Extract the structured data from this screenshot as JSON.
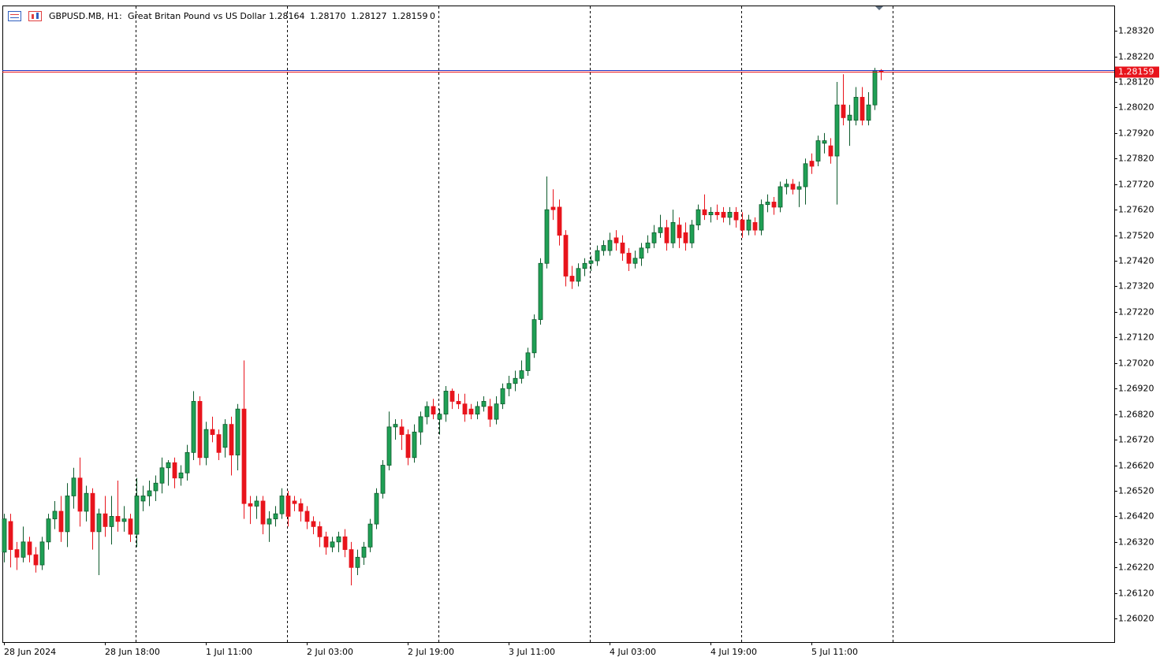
{
  "chart_data": {
    "type": "candlestick",
    "symbol": "GBPUSD.MB, H1:",
    "description": "Great Britan Pound vs US Dollar",
    "header_labels": [
      "1.28164",
      "1.28170",
      "1.28127",
      "1.28159"
    ],
    "tick_volume": 0,
    "up_color": "#1fa055",
    "down_color": "#e8141c",
    "price_line_color": "#e8141c",
    "grid": false,
    "ylim": [
      1.25928,
      1.28419
    ],
    "yticks": [
      {
        "value": 1.2832,
        "label": "1.28320"
      },
      {
        "value": 1.2822,
        "label": "1.28220"
      },
      {
        "value": 1.2812,
        "label": "1.28120"
      },
      {
        "value": 1.2802,
        "label": "1.28020"
      },
      {
        "value": 1.2792,
        "label": "1.27920"
      },
      {
        "value": 1.2782,
        "label": "1.27820"
      },
      {
        "value": 1.2772,
        "label": "1.27720"
      },
      {
        "value": 1.2762,
        "label": "1.27620"
      },
      {
        "value": 1.2752,
        "label": "1.27520"
      },
      {
        "value": 1.2742,
        "label": "1.27420"
      },
      {
        "value": 1.2732,
        "label": "1.27320"
      },
      {
        "value": 1.2722,
        "label": "1.27220"
      },
      {
        "value": 1.2712,
        "label": "1.27120"
      },
      {
        "value": 1.2702,
        "label": "1.27020"
      },
      {
        "value": 1.2692,
        "label": "1.26920"
      },
      {
        "value": 1.2682,
        "label": "1.26820"
      },
      {
        "value": 1.2672,
        "label": "1.26720"
      },
      {
        "value": 1.2662,
        "label": "1.26620"
      },
      {
        "value": 1.2652,
        "label": "1.26520"
      },
      {
        "value": 1.2642,
        "label": "1.26420"
      },
      {
        "value": 1.2632,
        "label": "1.26320"
      },
      {
        "value": 1.2622,
        "label": "1.26220"
      },
      {
        "value": 1.2612,
        "label": "1.26120"
      },
      {
        "value": 1.2602,
        "label": "1.26020"
      }
    ],
    "categories": [
      "28 Jun 2024",
      null,
      null,
      null,
      null,
      null,
      null,
      null,
      null,
      null,
      null,
      null,
      null,
      null,
      null,
      null,
      "28 Jun 18:00",
      null,
      null,
      null,
      null,
      null,
      null,
      null,
      null,
      null,
      null,
      null,
      null,
      null,
      null,
      null,
      "1 Jul 11:00",
      null,
      null,
      null,
      null,
      null,
      null,
      null,
      null,
      null,
      null,
      null,
      null,
      null,
      null,
      null,
      "2 Jul 03:00",
      null,
      null,
      null,
      null,
      null,
      null,
      null,
      null,
      null,
      null,
      null,
      null,
      null,
      null,
      null,
      "2 Jul 19:00",
      null,
      null,
      null,
      null,
      null,
      null,
      null,
      null,
      null,
      null,
      null,
      null,
      null,
      null,
      null,
      "3 Jul 11:00",
      null,
      null,
      null,
      null,
      null,
      null,
      null,
      null,
      null,
      null,
      null,
      null,
      null,
      null,
      null,
      "4 Jul 03:00",
      null,
      null,
      null,
      null,
      null,
      null,
      null,
      null,
      null,
      null,
      null,
      null,
      null,
      null,
      null,
      "4 Jul 19:00",
      null,
      null,
      null,
      null,
      null,
      null,
      null,
      null,
      null,
      null,
      null,
      null,
      null,
      null,
      null,
      "5 Jul 11:00",
      null,
      null,
      null,
      null,
      null,
      null,
      null,
      null,
      null,
      null,
      null
    ],
    "ohlc": [
      [
        1.2628,
        1.2643,
        1.2624,
        1.2641
      ],
      [
        1.264,
        1.2643,
        1.2622,
        1.2629
      ],
      [
        1.2629,
        1.2632,
        1.2621,
        1.2626
      ],
      [
        1.2626,
        1.2638,
        1.2624,
        1.2632
      ],
      [
        1.2632,
        1.2634,
        1.2624,
        1.2627
      ],
      [
        1.2627,
        1.263,
        1.262,
        1.2623
      ],
      [
        1.2623,
        1.2634,
        1.2621,
        1.2632
      ],
      [
        1.2632,
        1.2643,
        1.2629,
        1.2641
      ],
      [
        1.2641,
        1.2648,
        1.2637,
        1.2644
      ],
      [
        1.2644,
        1.265,
        1.2632,
        1.2636
      ],
      [
        1.2636,
        1.2655,
        1.263,
        1.265
      ],
      [
        1.265,
        1.2661,
        1.2645,
        1.2657
      ],
      [
        1.2657,
        1.2665,
        1.2638,
        1.2644
      ],
      [
        1.2644,
        1.2654,
        1.264,
        1.2651
      ],
      [
        1.2651,
        1.2653,
        1.2629,
        1.2636
      ],
      [
        1.2636,
        1.2645,
        1.2619,
        1.2643
      ],
      [
        1.2643,
        1.265,
        1.2634,
        1.2638
      ],
      [
        1.2638,
        1.265,
        1.2631,
        1.2642
      ],
      [
        1.2642,
        1.2656,
        1.2636,
        1.264
      ],
      [
        1.264,
        1.2646,
        1.2636,
        1.2641
      ],
      [
        1.2641,
        1.2643,
        1.2632,
        1.2635
      ],
      [
        1.2635,
        1.2657,
        1.263,
        1.265
      ],
      [
        1.2648,
        1.2654,
        1.2644,
        1.265
      ],
      [
        1.265,
        1.2656,
        1.2646,
        1.2652
      ],
      [
        1.2652,
        1.2658,
        1.2648,
        1.2655
      ],
      [
        1.2655,
        1.2665,
        1.2651,
        1.2661
      ],
      [
        1.2661,
        1.2664,
        1.2654,
        1.2663
      ],
      [
        1.2663,
        1.2665,
        1.2653,
        1.2657
      ],
      [
        1.2657,
        1.2662,
        1.2654,
        1.2659
      ],
      [
        1.2659,
        1.267,
        1.2656,
        1.2667
      ],
      [
        1.2667,
        1.2691,
        1.2664,
        1.2687
      ],
      [
        1.2687,
        1.2689,
        1.2662,
        1.2665
      ],
      [
        1.2665,
        1.2679,
        1.2662,
        1.2676
      ],
      [
        1.2676,
        1.2681,
        1.2671,
        1.2674
      ],
      [
        1.2674,
        1.2676,
        1.2664,
        1.2667
      ],
      [
        1.2669,
        1.268,
        1.2665,
        1.2678
      ],
      [
        1.2678,
        1.2681,
        1.2658,
        1.2666
      ],
      [
        1.2666,
        1.2686,
        1.266,
        1.2684
      ],
      [
        1.2684,
        1.2703,
        1.2641,
        1.2647
      ],
      [
        1.2647,
        1.265,
        1.2639,
        1.2646
      ],
      [
        1.2646,
        1.265,
        1.2641,
        1.2648
      ],
      [
        1.2648,
        1.265,
        1.2635,
        1.2639
      ],
      [
        1.2639,
        1.2644,
        1.2632,
        1.2641
      ],
      [
        1.2641,
        1.2646,
        1.2638,
        1.2643
      ],
      [
        1.2643,
        1.2653,
        1.2641,
        1.265
      ],
      [
        1.265,
        1.2652,
        1.2638,
        1.2642
      ],
      [
        1.2648,
        1.265,
        1.2644,
        1.2647
      ],
      [
        1.2647,
        1.2649,
        1.264,
        1.2644
      ],
      [
        1.2644,
        1.2646,
        1.2637,
        1.264
      ],
      [
        1.264,
        1.2642,
        1.2635,
        1.2638
      ],
      [
        1.2638,
        1.264,
        1.263,
        1.2634
      ],
      [
        1.2634,
        1.2636,
        1.2627,
        1.263
      ],
      [
        1.263,
        1.2634,
        1.2628,
        1.2632
      ],
      [
        1.2632,
        1.2636,
        1.2628,
        1.2634
      ],
      [
        1.2634,
        1.2637,
        1.2626,
        1.2629
      ],
      [
        1.2629,
        1.2632,
        1.2615,
        1.2622
      ],
      [
        1.2622,
        1.2629,
        1.2619,
        1.2626
      ],
      [
        1.2626,
        1.2632,
        1.2623,
        1.263
      ],
      [
        1.263,
        1.2641,
        1.2628,
        1.2639
      ],
      [
        1.2639,
        1.2653,
        1.2637,
        1.2651
      ],
      [
        1.2651,
        1.2664,
        1.2649,
        1.2662
      ],
      [
        1.2662,
        1.2683,
        1.266,
        1.2677
      ],
      [
        1.2677,
        1.268,
        1.2672,
        1.2678
      ],
      [
        1.2677,
        1.268,
        1.2668,
        1.2674
      ],
      [
        1.2674,
        1.2676,
        1.2662,
        1.2665
      ],
      [
        1.2665,
        1.2678,
        1.2663,
        1.2675
      ],
      [
        1.2675,
        1.2683,
        1.267,
        1.2681
      ],
      [
        1.2681,
        1.2687,
        1.2678,
        1.2685
      ],
      [
        1.2685,
        1.2688,
        1.268,
        1.2682
      ],
      [
        1.268,
        1.2684,
        1.2674,
        1.2682
      ],
      [
        1.2682,
        1.2693,
        1.2679,
        1.2691
      ],
      [
        1.2691,
        1.2692,
        1.2684,
        1.2687
      ],
      [
        1.2687,
        1.269,
        1.2684,
        1.2686
      ],
      [
        1.2686,
        1.269,
        1.2679,
        1.2682
      ],
      [
        1.2684,
        1.2686,
        1.268,
        1.2682
      ],
      [
        1.2682,
        1.2687,
        1.268,
        1.2685
      ],
      [
        1.2685,
        1.2689,
        1.2683,
        1.2687
      ],
      [
        1.2685,
        1.2688,
        1.2677,
        1.268
      ],
      [
        1.268,
        1.2689,
        1.2678,
        1.2686
      ],
      [
        1.2686,
        1.2694,
        1.2684,
        1.2692
      ],
      [
        1.2692,
        1.2697,
        1.2689,
        1.2694
      ],
      [
        1.2694,
        1.2699,
        1.2691,
        1.2696
      ],
      [
        1.2696,
        1.2703,
        1.2694,
        1.2699
      ],
      [
        1.2699,
        1.2708,
        1.2697,
        1.2706
      ],
      [
        1.2706,
        1.2721,
        1.2704,
        1.2719
      ],
      [
        1.2719,
        1.2743,
        1.2717,
        1.2741
      ],
      [
        1.2741,
        1.2775,
        1.2739,
        1.2762
      ],
      [
        1.2763,
        1.277,
        1.2758,
        1.2762
      ],
      [
        1.2763,
        1.2766,
        1.2748,
        1.2752
      ],
      [
        1.2752,
        1.2754,
        1.2732,
        1.2736
      ],
      [
        1.2736,
        1.274,
        1.2731,
        1.2734
      ],
      [
        1.2734,
        1.2741,
        1.2732,
        1.2739
      ],
      [
        1.2739,
        1.2743,
        1.2736,
        1.2741
      ],
      [
        1.2741,
        1.2744,
        1.2738,
        1.2742
      ],
      [
        1.2742,
        1.2748,
        1.274,
        1.2746
      ],
      [
        1.2746,
        1.275,
        1.2744,
        1.2748
      ],
      [
        1.2746,
        1.2753,
        1.2744,
        1.275
      ],
      [
        1.2751,
        1.2754,
        1.2746,
        1.2749
      ],
      [
        1.2749,
        1.2752,
        1.2742,
        1.2745
      ],
      [
        1.2745,
        1.2747,
        1.2738,
        1.2741
      ],
      [
        1.2741,
        1.2746,
        1.2739,
        1.2743
      ],
      [
        1.2743,
        1.2749,
        1.274,
        1.2747
      ],
      [
        1.2747,
        1.2752,
        1.2745,
        1.2749
      ],
      [
        1.2749,
        1.2756,
        1.2747,
        1.2753
      ],
      [
        1.2753,
        1.276,
        1.2751,
        1.2755
      ],
      [
        1.2755,
        1.2758,
        1.2746,
        1.2749
      ],
      [
        1.2749,
        1.2762,
        1.2747,
        1.2757
      ],
      [
        1.2756,
        1.2759,
        1.2747,
        1.2751
      ],
      [
        1.2753,
        1.2757,
        1.2746,
        1.2749
      ],
      [
        1.2749,
        1.2758,
        1.2747,
        1.2756
      ],
      [
        1.2756,
        1.2764,
        1.2754,
        1.2762
      ],
      [
        1.2762,
        1.2768,
        1.2758,
        1.276
      ],
      [
        1.276,
        1.2763,
        1.2757,
        1.2761
      ],
      [
        1.2761,
        1.2764,
        1.2758,
        1.276
      ],
      [
        1.2761,
        1.2763,
        1.2757,
        1.2759
      ],
      [
        1.2759,
        1.2763,
        1.2756,
        1.2761
      ],
      [
        1.2761,
        1.2763,
        1.2755,
        1.2758
      ],
      [
        1.2758,
        1.2761,
        1.2751,
        1.2754
      ],
      [
        1.2754,
        1.276,
        1.2752,
        1.2758
      ],
      [
        1.2757,
        1.2759,
        1.2752,
        1.2754
      ],
      [
        1.2754,
        1.2766,
        1.2752,
        1.2764
      ],
      [
        1.2764,
        1.2768,
        1.2761,
        1.2765
      ],
      [
        1.2765,
        1.2767,
        1.276,
        1.2763
      ],
      [
        1.2763,
        1.2773,
        1.2761,
        1.2771
      ],
      [
        1.2771,
        1.2774,
        1.2768,
        1.2772
      ],
      [
        1.2772,
        1.2774,
        1.2768,
        1.277
      ],
      [
        1.277,
        1.2773,
        1.2763,
        1.2771
      ],
      [
        1.2771,
        1.2782,
        1.2764,
        1.278
      ],
      [
        1.2781,
        1.2784,
        1.2776,
        1.2779
      ],
      [
        1.2781,
        1.2791,
        1.2779,
        1.2789
      ],
      [
        1.2788,
        1.2792,
        1.2784,
        1.2789
      ],
      [
        1.2787,
        1.279,
        1.278,
        1.2783
      ],
      [
        1.2783,
        1.2812,
        1.2764,
        1.2803
      ],
      [
        1.2803,
        1.2815,
        1.2795,
        1.2798
      ],
      [
        1.2797,
        1.2803,
        1.2787,
        1.2799
      ],
      [
        1.2797,
        1.281,
        1.2795,
        1.2806
      ],
      [
        1.2806,
        1.281,
        1.2795,
        1.2797
      ],
      [
        1.2797,
        1.2808,
        1.2795,
        1.2803
      ],
      [
        1.2803,
        1.28175,
        1.2801,
        1.28164
      ],
      [
        1.28164,
        1.2817,
        1.28127,
        1.28159
      ]
    ]
  }
}
